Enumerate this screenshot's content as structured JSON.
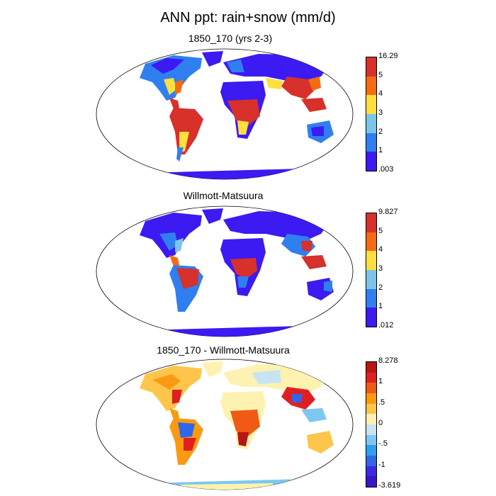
{
  "title": "ANN ppt: rain+snow (mm/d)",
  "panels": [
    {
      "title": "1850_170 (yrs 2-3)",
      "colorbar": {
        "labels": [
          "16.29",
          "5",
          "4",
          "3",
          "2",
          "1",
          ".003"
        ],
        "colors": [
          "#d8302a",
          "#f56a12",
          "#fde03e",
          "#7cc4ec",
          "#2f7ff0",
          "#3c1af2"
        ]
      }
    },
    {
      "title": "Willmott-Matsuura",
      "colorbar": {
        "labels": [
          "9.827",
          "5",
          "4",
          "3",
          "2",
          "1",
          ".012"
        ],
        "colors": [
          "#d8302a",
          "#f56a12",
          "#fde03e",
          "#7cc4ec",
          "#2f7ff0",
          "#3c1af2"
        ]
      }
    },
    {
      "title": "1850_170 - Willmott-Matsuura",
      "colorbar": {
        "labels": [
          "8.278",
          "1",
          ".5",
          "0",
          "-.5",
          "-1",
          "-3.619"
        ],
        "colors": [
          "#b81515",
          "#e02020",
          "#f05a14",
          "#fa9a12",
          "#fdc64a",
          "#fdf2b0",
          "#c8e4f4",
          "#7cc8f0",
          "#2f9ef0",
          "#3066e8",
          "#3a2ae0",
          "#3a14c8"
        ]
      }
    }
  ]
}
